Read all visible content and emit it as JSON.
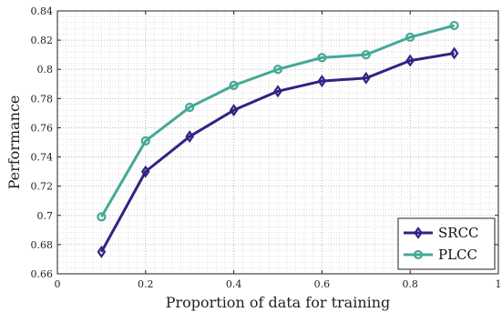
{
  "chart_data": {
    "type": "line",
    "xlabel": "Proportion of data for training",
    "ylabel": "Performance",
    "xlim": [
      0,
      1
    ],
    "ylim": [
      0.66,
      0.84
    ],
    "x_ticks": [
      0,
      0.2,
      0.4,
      0.6,
      0.8,
      1
    ],
    "x_tick_labels": [
      "0",
      "0.2",
      "0.4",
      "0.6",
      "0.8",
      "1"
    ],
    "y_ticks": [
      0.66,
      0.68,
      0.7,
      0.72,
      0.74,
      0.76,
      0.78,
      0.8,
      0.82,
      0.84
    ],
    "y_tick_labels": [
      "0.66",
      "0.68",
      "0.7",
      "0.72",
      "0.74",
      "0.76",
      "0.78",
      "0.8",
      "0.82",
      "0.84"
    ],
    "grid": true,
    "legend_position": "bottom-right",
    "x": [
      0.1,
      0.2,
      0.3,
      0.4,
      0.5,
      0.6,
      0.7,
      0.8,
      0.9
    ],
    "series": [
      {
        "name": "SRCC",
        "color": "#2e2482",
        "marker": "diamond",
        "values": [
          0.675,
          0.73,
          0.754,
          0.772,
          0.785,
          0.792,
          0.794,
          0.806,
          0.811
        ]
      },
      {
        "name": "PLCC",
        "color": "#45a896",
        "marker": "circle",
        "values": [
          0.699,
          0.751,
          0.774,
          0.789,
          0.8,
          0.808,
          0.81,
          0.822,
          0.83
        ]
      }
    ]
  }
}
